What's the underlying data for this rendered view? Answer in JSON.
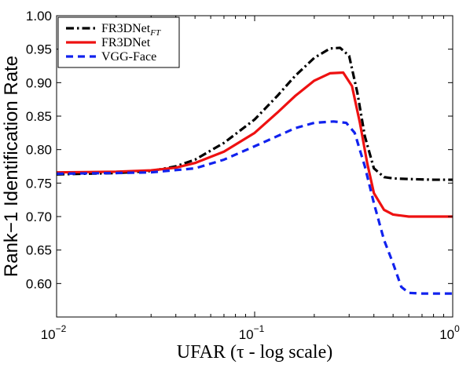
{
  "chart_data": {
    "type": "line",
    "title": "",
    "xlabel": "UFAR (τ - log scale)",
    "ylabel": "Rank−1 Identification Rate",
    "xscale": "log",
    "xlim": [
      0.01,
      1
    ],
    "ylim": [
      0.55,
      1.0
    ],
    "x_ticks": [
      {
        "value": 0.01,
        "base": "10",
        "exp": "−2"
      },
      {
        "value": 0.1,
        "base": "10",
        "exp": "−1"
      },
      {
        "value": 1,
        "base": "10",
        "exp": "0"
      }
    ],
    "y_ticks": [
      {
        "value": 0.6,
        "label": "0.60"
      },
      {
        "value": 0.65,
        "label": "0.65"
      },
      {
        "value": 0.7,
        "label": "0.70"
      },
      {
        "value": 0.75,
        "label": "0.75"
      },
      {
        "value": 0.8,
        "label": "0.80"
      },
      {
        "value": 0.85,
        "label": "0.85"
      },
      {
        "value": 0.9,
        "label": "0.90"
      },
      {
        "value": 0.95,
        "label": "0.95"
      },
      {
        "value": 1.0,
        "label": "1.00"
      }
    ],
    "grid": false,
    "legend_position": "top-left",
    "series": [
      {
        "name": "FR3DNet",
        "subscript": "FT",
        "color": "#000000",
        "style": "dashdot",
        "x": [
          0.01,
          0.02,
          0.03,
          0.04,
          0.05,
          0.07,
          0.1,
          0.13,
          0.16,
          0.2,
          0.24,
          0.27,
          0.3,
          0.33,
          0.36,
          0.4,
          0.45,
          0.5,
          0.6,
          0.8,
          1.0
        ],
        "y": [
          0.763,
          0.765,
          0.768,
          0.775,
          0.785,
          0.81,
          0.845,
          0.88,
          0.91,
          0.937,
          0.951,
          0.952,
          0.94,
          0.885,
          0.82,
          0.772,
          0.759,
          0.757,
          0.756,
          0.755,
          0.755
        ]
      },
      {
        "name": "FR3DNet",
        "color": "#ee1111",
        "style": "solid",
        "x": [
          0.01,
          0.02,
          0.03,
          0.04,
          0.05,
          0.07,
          0.1,
          0.13,
          0.16,
          0.2,
          0.24,
          0.28,
          0.31,
          0.34,
          0.37,
          0.4,
          0.45,
          0.5,
          0.6,
          0.8,
          1.0
        ],
        "y": [
          0.766,
          0.767,
          0.769,
          0.773,
          0.78,
          0.797,
          0.825,
          0.855,
          0.88,
          0.903,
          0.914,
          0.915,
          0.895,
          0.84,
          0.78,
          0.735,
          0.71,
          0.703,
          0.7,
          0.7,
          0.7
        ]
      },
      {
        "name": "VGG-Face",
        "color": "#1122ee",
        "style": "dashed",
        "x": [
          0.01,
          0.02,
          0.03,
          0.05,
          0.07,
          0.1,
          0.13,
          0.16,
          0.2,
          0.25,
          0.29,
          0.32,
          0.36,
          0.4,
          0.45,
          0.5,
          0.55,
          0.6,
          0.7,
          1.0
        ],
        "y": [
          0.764,
          0.765,
          0.766,
          0.772,
          0.785,
          0.805,
          0.82,
          0.832,
          0.84,
          0.842,
          0.84,
          0.825,
          0.775,
          0.72,
          0.665,
          0.63,
          0.595,
          0.586,
          0.585,
          0.585
        ]
      }
    ]
  }
}
